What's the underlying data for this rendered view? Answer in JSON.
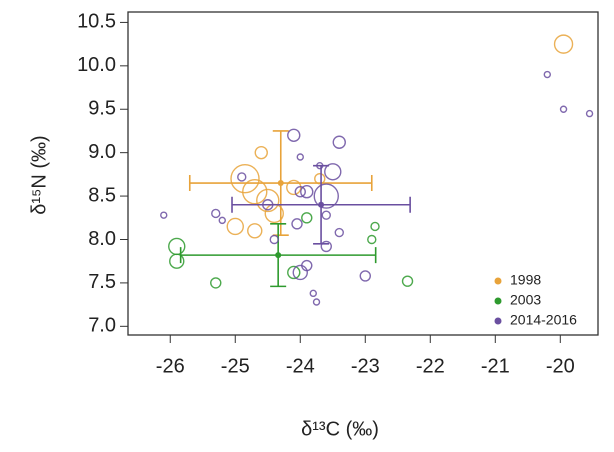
{
  "chart_data": {
    "type": "scatter",
    "x_label": "δ¹³C (‰)",
    "y_label": "δ¹⁵N (‰)",
    "xlim": [
      -26.65,
      -19.42
    ],
    "ylim": [
      6.9,
      10.62
    ],
    "xticks": [
      -26,
      -25,
      -24,
      -23,
      -22,
      -21,
      -20
    ],
    "yticks": [
      {
        "value": 7,
        "label": "7.0"
      },
      7.5,
      {
        "value": 8,
        "label": "8.0"
      },
      8.5,
      {
        "value": 9,
        "label": "9.0"
      },
      9.5,
      {
        "value": 10,
        "label": "10.0"
      },
      10.5
    ],
    "legend": "bottom-right",
    "series": [
      {
        "name": "1998",
        "color": "#e8a33a",
        "x": [
          -19.95,
          -24.85,
          -24.7,
          -24.5,
          -24.4,
          -24.6,
          -25.0,
          -24.7,
          -24.1,
          -23.7
        ],
        "values": [
          10.25,
          8.7,
          8.55,
          8.45,
          8.3,
          9.0,
          8.15,
          8.1,
          8.6,
          8.7
        ],
        "sizes": [
          9,
          14,
          12,
          11,
          9,
          6,
          8,
          7,
          7,
          5
        ],
        "mean": {
          "x": -24.3,
          "y": 8.65,
          "xerr": 1.4,
          "yerr": 0.6
        }
      },
      {
        "name": "2003",
        "color": "#2e9a2e",
        "x": [
          -25.9,
          -25.9,
          -25.3,
          -24.1,
          -23.9,
          -22.9,
          -22.85,
          -22.35
        ],
        "values": [
          7.92,
          7.75,
          7.5,
          7.62,
          8.25,
          8.0,
          8.15,
          7.52
        ],
        "sizes": [
          8,
          7,
          5,
          6,
          5,
          4,
          4,
          5
        ],
        "mean": {
          "x": -24.34,
          "y": 7.82,
          "xerr": 1.5,
          "yerr": 0.36
        }
      },
      {
        "name": "2014-2016",
        "color": "#6a4fa0",
        "x": [
          -26.1,
          -25.3,
          -25.2,
          -24.9,
          -24.5,
          -24.4,
          -24.1,
          -24.0,
          -24.0,
          -23.9,
          -23.6,
          -23.5,
          -23.4,
          -23.7,
          -23.6,
          -23.6,
          -23.9,
          -24.0,
          -23.8,
          -23.75,
          -23.0,
          -23.4,
          -24.05,
          -20.2,
          -19.95,
          -19.55
        ],
        "values": [
          8.28,
          8.3,
          8.22,
          8.72,
          8.4,
          8.0,
          9.2,
          8.95,
          8.55,
          8.55,
          8.5,
          8.78,
          9.12,
          8.85,
          8.28,
          7.92,
          7.7,
          7.62,
          7.38,
          7.28,
          7.58,
          8.08,
          8.18,
          9.9,
          9.5,
          9.45
        ],
        "sizes": [
          3,
          4,
          3,
          4,
          5,
          4,
          6,
          3,
          5,
          6,
          12,
          8,
          6,
          3,
          4,
          5,
          5,
          7,
          3,
          3,
          5,
          4,
          5,
          3,
          3,
          3
        ],
        "mean": {
          "x": -23.68,
          "y": 8.4,
          "xerr": 1.37,
          "yerr": 0.45
        }
      }
    ]
  }
}
